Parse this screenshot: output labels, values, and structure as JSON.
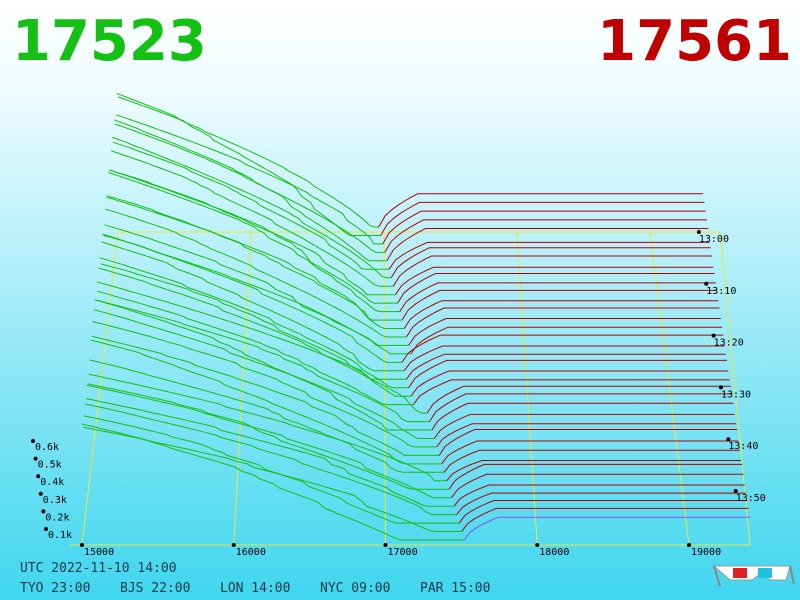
{
  "header": {
    "bid": "17523",
    "ask": "17561"
  },
  "price_axis": [
    "15000",
    "16000",
    "17000",
    "18000",
    "19000"
  ],
  "time_axis": [
    "13:00",
    "13:10",
    "13:20",
    "13:30",
    "13:40",
    "13:50"
  ],
  "depth_axis": [
    "0.6k",
    "0.5k",
    "0.4k",
    "0.3k",
    "0.2k",
    "0.1k"
  ],
  "footer": {
    "utc": "UTC 2022-11-10 14:00",
    "zones": [
      "TYO 23:00",
      "BJS 22:00",
      "LON 14:00",
      "NYC 09:00",
      "PAR 15:00"
    ]
  }
}
